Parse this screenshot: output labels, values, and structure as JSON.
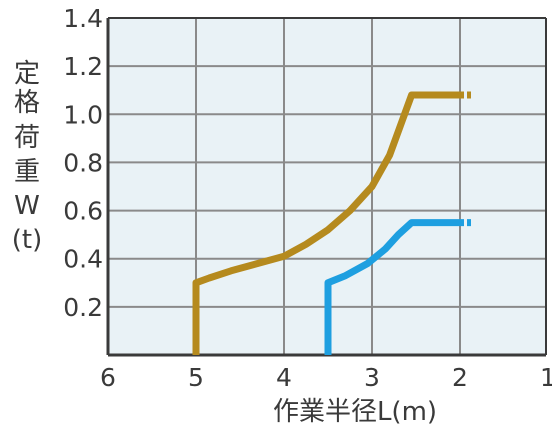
{
  "chart_data": {
    "type": "line",
    "title": "",
    "xlabel": "作業半径L(m)",
    "ylabel": [
      "定",
      "格",
      "荷",
      "重",
      "W",
      "(t)"
    ],
    "xlim": [
      6,
      1
    ],
    "ylim": [
      0,
      1.4
    ],
    "x_ticks": [
      "6",
      "5",
      "4",
      "3",
      "2",
      "1"
    ],
    "y_ticks": [
      "0.2",
      "0.4",
      "0.6",
      "0.8",
      "1.0",
      "1.2",
      "1.4"
    ],
    "grid": true,
    "series": [
      {
        "color": "#b58a1e",
        "points": [
          [
            5.0,
            0.0
          ],
          [
            5.0,
            0.3
          ],
          [
            4.85,
            0.32
          ],
          [
            4.6,
            0.35
          ],
          [
            4.3,
            0.38
          ],
          [
            4.0,
            0.41
          ],
          [
            3.75,
            0.46
          ],
          [
            3.5,
            0.52
          ],
          [
            3.25,
            0.6
          ],
          [
            3.0,
            0.7
          ],
          [
            2.8,
            0.83
          ],
          [
            2.65,
            0.98
          ],
          [
            2.55,
            1.08
          ],
          [
            2.0,
            1.08
          ]
        ]
      },
      {
        "color": "#1e9fe0",
        "points": [
          [
            3.5,
            0.0
          ],
          [
            3.5,
            0.3
          ],
          [
            3.3,
            0.33
          ],
          [
            3.05,
            0.38
          ],
          [
            2.85,
            0.44
          ],
          [
            2.7,
            0.5
          ],
          [
            2.55,
            0.55
          ],
          [
            2.0,
            0.55
          ]
        ]
      }
    ]
  },
  "colors": {
    "plot_background": "#e9f2f6",
    "grid": "#8a8a8a",
    "axis": "#3a3a3a",
    "text": "#3a3a3a"
  }
}
